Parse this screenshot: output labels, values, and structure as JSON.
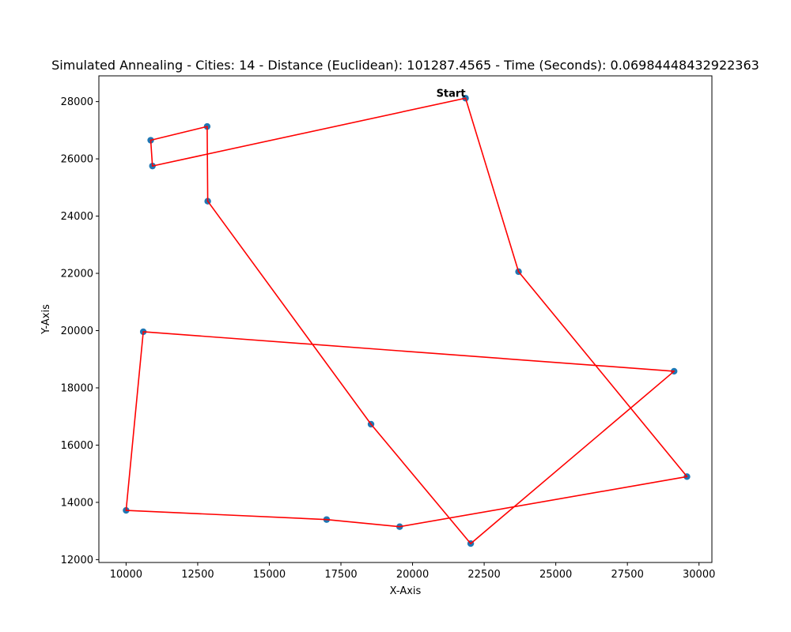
{
  "chart_data": {
    "type": "line",
    "title": "Simulated Annealing - Cities: 14 - Distance (Euclidean): 101287.4565 - Time (Seconds): 0.06984448432922363",
    "xlabel": "X-Axis",
    "ylabel": "Y-Axis",
    "xlim": [
      9050,
      30450
    ],
    "ylim": [
      11900,
      28900
    ],
    "xticks": [
      10000,
      12500,
      15000,
      17500,
      20000,
      22500,
      25000,
      27500,
      30000
    ],
    "yticks": [
      12000,
      14000,
      16000,
      18000,
      20000,
      22000,
      24000,
      26000,
      28000
    ],
    "grid": false,
    "route_color": "#ff0000",
    "point_color": "#1f77b4",
    "start_label": "Start",
    "route": [
      {
        "x": 21850,
        "y": 28120
      },
      {
        "x": 23700,
        "y": 22060
      },
      {
        "x": 29580,
        "y": 14900
      },
      {
        "x": 19550,
        "y": 13150
      },
      {
        "x": 17000,
        "y": 13400
      },
      {
        "x": 10000,
        "y": 13720
      },
      {
        "x": 10600,
        "y": 19960
      },
      {
        "x": 29130,
        "y": 18580
      },
      {
        "x": 22030,
        "y": 12560
      },
      {
        "x": 18550,
        "y": 16730
      },
      {
        "x": 12850,
        "y": 24520
      },
      {
        "x": 12830,
        "y": 27130
      },
      {
        "x": 10860,
        "y": 26650
      },
      {
        "x": 10920,
        "y": 25750
      },
      {
        "x": 21850,
        "y": 28120
      }
    ]
  }
}
